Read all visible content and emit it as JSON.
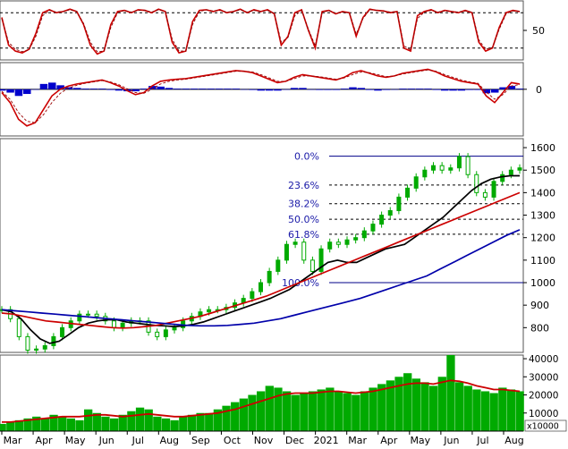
{
  "chart_data": [
    {
      "type": "line",
      "panel": "oscillator",
      "y_ticks": [
        50
      ],
      "reference_levels": [
        80,
        20
      ],
      "ylim": [
        0,
        100
      ],
      "series": [
        {
          "color": "#cc0000",
          "values": [
            72,
            25,
            15,
            12,
            18,
            45,
            80,
            85,
            80,
            82,
            86,
            82,
            60,
            25,
            10,
            15,
            60,
            82,
            84,
            80,
            85,
            84,
            80,
            86,
            82,
            30,
            12,
            15,
            65,
            84,
            85,
            82,
            85,
            80,
            82,
            86,
            80,
            85,
            82,
            85,
            78,
            25,
            40,
            80,
            85,
            50,
            20,
            82,
            84,
            78,
            82,
            80,
            40,
            72,
            86,
            84,
            83,
            80,
            82,
            20,
            15,
            75,
            82,
            85,
            80,
            84,
            82,
            80,
            84,
            80,
            30,
            15,
            20,
            55,
            80,
            84,
            82
          ]
        },
        {
          "color": "#880000",
          "values": [
            70,
            30,
            18,
            14,
            17,
            40,
            75,
            84,
            81,
            82,
            85,
            82,
            62,
            30,
            14,
            15,
            55,
            80,
            84,
            81,
            84,
            84,
            81,
            85,
            82,
            35,
            15,
            15,
            60,
            82,
            85,
            83,
            84,
            81,
            82,
            85,
            81,
            84,
            82,
            84,
            79,
            30,
            38,
            75,
            84,
            52,
            24,
            80,
            84,
            79,
            81,
            80,
            44,
            70,
            85,
            84,
            83,
            81,
            82,
            24,
            17,
            70,
            81,
            84,
            81,
            83,
            82,
            81,
            83,
            81,
            34,
            18,
            21,
            52,
            78,
            83,
            82
          ]
        }
      ]
    },
    {
      "type": "area",
      "panel": "macd",
      "y_ticks": [
        0
      ],
      "ylim": [
        -70,
        40
      ],
      "series": [
        {
          "color": "#cc0000",
          "values": [
            -5,
            -20,
            -45,
            -55,
            -50,
            -30,
            -10,
            0,
            5,
            8,
            10,
            12,
            14,
            10,
            5,
            -2,
            -8,
            -5,
            5,
            12,
            14,
            15,
            16,
            18,
            20,
            22,
            24,
            26,
            28,
            27,
            25,
            20,
            15,
            10,
            12,
            18,
            22,
            20,
            18,
            16,
            14,
            18,
            25,
            28,
            24,
            20,
            18,
            20,
            24,
            26,
            28,
            30,
            26,
            20,
            16,
            12,
            10,
            8,
            -10,
            -20,
            -5,
            10,
            8
          ]
        },
        {
          "color": "#990000",
          "values": [
            -3,
            -15,
            -35,
            -48,
            -50,
            -38,
            -20,
            -6,
            2,
            6,
            9,
            11,
            13,
            11,
            7,
            1,
            -5,
            -6,
            0,
            8,
            12,
            14,
            15,
            17,
            19,
            21,
            23,
            25,
            27,
            27,
            26,
            22,
            17,
            12,
            12,
            16,
            20,
            20,
            19,
            17,
            15,
            17,
            22,
            26,
            25,
            22,
            19,
            20,
            23,
            25,
            27,
            29,
            27,
            22,
            18,
            14,
            11,
            9,
            -4,
            -15,
            -8,
            5,
            7
          ]
        },
        {
          "color": "#0000cc",
          "values": [
            -2,
            -5,
            -10,
            -7,
            0,
            8,
            10,
            6,
            3,
            2,
            1,
            1,
            1,
            -1,
            -2,
            -3,
            -3,
            1,
            5,
            4,
            2,
            1,
            1,
            1,
            1,
            1,
            1,
            1,
            1,
            0,
            -1,
            -2,
            -2,
            -2,
            0,
            2,
            2,
            0,
            -1,
            -1,
            -1,
            1,
            3,
            2,
            -1,
            -2,
            -1,
            0,
            1,
            1,
            1,
            1,
            -1,
            -2,
            -2,
            -2,
            -1,
            -1,
            -6,
            -5,
            3,
            5,
            1
          ]
        }
      ]
    },
    {
      "type": "line",
      "panel": "price",
      "title": "",
      "xlabel": "",
      "ylabel": "",
      "x_ticks": [
        "Mar",
        "Apr",
        "May",
        "Jun",
        "Jul",
        "Aug",
        "Sep",
        "Oct",
        "Nov",
        "Dec",
        "2021",
        "Mar",
        "Apr",
        "May",
        "Jun",
        "Jul",
        "Aug"
      ],
      "y_ticks": [
        800,
        900,
        1000,
        1100,
        1200,
        1300,
        1400,
        1500,
        1600
      ],
      "ylim": [
        690,
        1640
      ],
      "fibonacci": {
        "levels": [
          {
            "label": "0.0%",
            "price": 1562
          },
          {
            "label": "23.6%",
            "price": 1434
          },
          {
            "label": "38.2%",
            "price": 1351
          },
          {
            "label": "50.0%",
            "price": 1282
          },
          {
            "label": "61.8%",
            "price": 1215
          },
          {
            "label": "100.0%",
            "price": 1000
          }
        ]
      },
      "series": [
        {
          "color": "#00aa00",
          "values": [
            880,
            840,
            760,
            700,
            705,
            720,
            760,
            800,
            830,
            860,
            860,
            850,
            830,
            800,
            820,
            830,
            830,
            780,
            760,
            790,
            800,
            830,
            850,
            870,
            880,
            880,
            890,
            910,
            930,
            960,
            1000,
            1050,
            1100,
            1170,
            1180,
            1100,
            1050,
            1150,
            1180,
            1170,
            1190,
            1200,
            1230,
            1260,
            1300,
            1320,
            1380,
            1420,
            1470,
            1500,
            1520,
            1500,
            1510,
            1560,
            1480,
            1400,
            1380,
            1450,
            1480,
            1500,
            1510
          ]
        },
        {
          "color": "#000000",
          "values": [
            880,
            870,
            840,
            790,
            750,
            730,
            740,
            770,
            800,
            820,
            830,
            835,
            835,
            825,
            820,
            815,
            810,
            808,
            805,
            808,
            815,
            825,
            840,
            855,
            870,
            885,
            900,
            915,
            930,
            950,
            970,
            1000,
            1030,
            1060,
            1090,
            1100,
            1090,
            1090,
            1110,
            1130,
            1150,
            1160,
            1170,
            1200,
            1230,
            1260,
            1290,
            1330,
            1370,
            1410,
            1440,
            1460,
            1470,
            1475,
            1475
          ]
        },
        {
          "color": "#cc0000",
          "values": [
            865,
            860,
            850,
            840,
            830,
            825,
            820,
            815,
            810,
            805,
            800,
            798,
            800,
            805,
            810,
            820,
            830,
            840,
            850,
            865,
            880,
            895,
            910,
            925,
            940,
            960,
            980,
            1000,
            1020,
            1040,
            1060,
            1080,
            1100,
            1120,
            1140,
            1160,
            1180,
            1200,
            1220,
            1240,
            1260,
            1280,
            1300,
            1320,
            1340,
            1360,
            1380,
            1400
          ]
        },
        {
          "color": "#0000aa",
          "values": [
            880,
            875,
            870,
            865,
            860,
            855,
            850,
            845,
            840,
            835,
            830,
            825,
            820,
            815,
            810,
            808,
            808,
            810,
            815,
            820,
            830,
            840,
            855,
            870,
            885,
            900,
            915,
            930,
            950,
            970,
            990,
            1010,
            1030,
            1060,
            1090,
            1120,
            1150,
            1180,
            1210,
            1235
          ]
        }
      ]
    },
    {
      "type": "bar",
      "panel": "volume",
      "y_ticks": [
        10000,
        20000,
        30000,
        40000
      ],
      "ylim": [
        0,
        42000
      ],
      "unit_label": "x10000",
      "series": [
        {
          "color": "#00aa00",
          "values": [
            4000,
            5000,
            6000,
            7000,
            8000,
            7000,
            9000,
            8000,
            7000,
            6000,
            12000,
            10000,
            8000,
            7000,
            9000,
            11000,
            13000,
            12000,
            8000,
            7000,
            6000,
            8000,
            9000,
            10000,
            10000,
            12000,
            14000,
            16000,
            18000,
            20000,
            22000,
            25000,
            24000,
            22000,
            20000,
            21000,
            22000,
            23000,
            24000,
            22000,
            21000,
            20000,
            22000,
            24000,
            26000,
            28000,
            30000,
            32000,
            29000,
            27000,
            25000,
            30000,
            42000,
            27000,
            25000,
            23000,
            22000,
            21000,
            24000,
            23000,
            22000
          ]
        },
        {
          "color": "#cc0000",
          "values": [
            5000,
            5000,
            5500,
            6000,
            6500,
            7000,
            7500,
            8000,
            8000,
            8000,
            8500,
            9000,
            9000,
            8500,
            8000,
            8500,
            9000,
            9500,
            9000,
            8500,
            8000,
            8000,
            8500,
            9000,
            9500,
            10000,
            11000,
            12000,
            13500,
            15000,
            16500,
            18000,
            19500,
            20500,
            21000,
            21000,
            21000,
            21500,
            22000,
            22000,
            21500,
            21000,
            21500,
            22000,
            23000,
            24000,
            25000,
            26000,
            26500,
            26500,
            26000,
            27000,
            28000,
            27500,
            26500,
            25000,
            24000,
            23000,
            23000,
            22500,
            22000
          ]
        }
      ]
    }
  ]
}
